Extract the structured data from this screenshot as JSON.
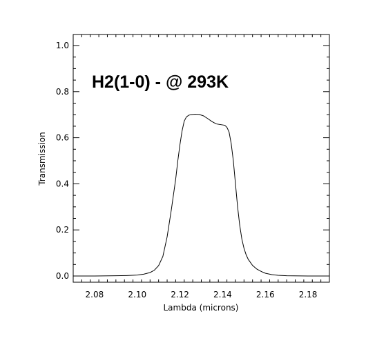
{
  "chart_data": {
    "type": "line",
    "title": "",
    "xlabel": "Lambda (microns)",
    "ylabel": "Transmission",
    "annotation": "H2(1-0) - @ 293K",
    "xlim": [
      2.07,
      2.19
    ],
    "ylim": [
      0.0,
      1.0
    ],
    "xticks": [
      2.08,
      2.1,
      2.12,
      2.14,
      2.16,
      2.18
    ],
    "xtick_labels": [
      "2.08",
      "2.10",
      "2.12",
      "2.14",
      "2.16",
      "2.18"
    ],
    "yticks": [
      0.0,
      0.2,
      0.4,
      0.6,
      0.8,
      1.0
    ],
    "ytick_labels": [
      "0.0",
      "0.2",
      "0.4",
      "0.6",
      "0.8",
      "1.0"
    ],
    "grid": false,
    "series": [
      {
        "x": [
          2.07,
          2.08,
          2.09,
          2.095,
          2.1,
          2.103,
          2.106,
          2.108,
          2.11,
          2.112,
          2.114,
          2.116,
          2.118,
          2.119,
          2.12,
          2.121,
          2.122,
          2.123,
          2.124,
          2.125,
          2.127,
          2.129,
          2.131,
          2.133,
          2.135,
          2.137,
          2.139,
          2.141,
          2.142,
          2.143,
          2.144,
          2.145,
          2.146,
          2.147,
          2.148,
          2.149,
          2.15,
          2.151,
          2.152,
          2.154,
          2.156,
          2.158,
          2.16,
          2.163,
          2.166,
          2.17,
          2.18,
          2.19
        ],
        "y": [
          0.0,
          0.0,
          0.001,
          0.002,
          0.004,
          0.008,
          0.015,
          0.025,
          0.045,
          0.085,
          0.17,
          0.29,
          0.42,
          0.5,
          0.57,
          0.63,
          0.672,
          0.69,
          0.697,
          0.7,
          0.702,
          0.701,
          0.695,
          0.683,
          0.67,
          0.66,
          0.657,
          0.654,
          0.645,
          0.625,
          0.575,
          0.5,
          0.4,
          0.3,
          0.22,
          0.16,
          0.12,
          0.092,
          0.072,
          0.046,
          0.03,
          0.02,
          0.012,
          0.006,
          0.003,
          0.001,
          0.0,
          0.0
        ]
      }
    ]
  }
}
